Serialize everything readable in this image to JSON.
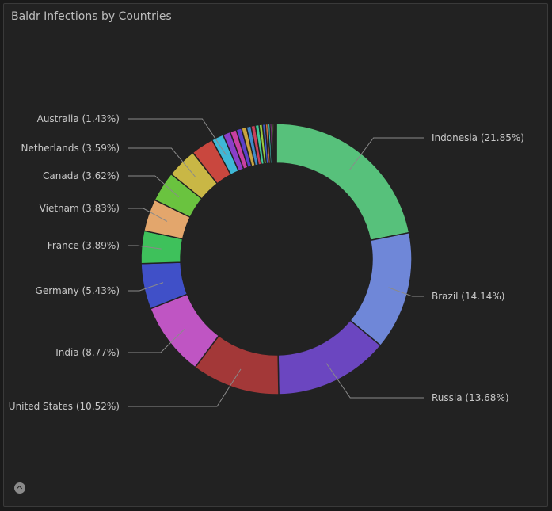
{
  "panel": {
    "title": "Baldr Infections by Countries"
  },
  "chart_data": {
    "type": "pie",
    "title": "Baldr Infections by Countries",
    "donut": true,
    "unit": "%",
    "slices": [
      {
        "name": "Indonesia",
        "value": 21.85,
        "label": "Indonesia (21.85%)",
        "color": "#57c17b",
        "labeled": true
      },
      {
        "name": "Brazil",
        "value": 14.14,
        "label": "Brazil (14.14%)",
        "color": "#6f87d8",
        "labeled": true
      },
      {
        "name": "Russia",
        "value": 13.68,
        "label": "Russia (13.68%)",
        "color": "#6b46c0",
        "labeled": true
      },
      {
        "name": "United States",
        "value": 10.52,
        "label": "United States (10.52%)",
        "color": "#a33838",
        "labeled": true
      },
      {
        "name": "India",
        "value": 8.77,
        "label": "India (8.77%)",
        "color": "#bf55c3",
        "labeled": true
      },
      {
        "name": "Germany",
        "value": 5.43,
        "label": "Germany (5.43%)",
        "color": "#4050c8",
        "labeled": true
      },
      {
        "name": "France",
        "value": 3.89,
        "label": "France (3.89%)",
        "color": "#3ec15b",
        "labeled": true
      },
      {
        "name": "Vietnam",
        "value": 3.83,
        "label": "Vietnam (3.83%)",
        "color": "#e3a66c",
        "labeled": true
      },
      {
        "name": "Canada",
        "value": 3.62,
        "label": "Canada (3.62%)",
        "color": "#6ac33f",
        "labeled": true
      },
      {
        "name": "Netherlands",
        "value": 3.59,
        "label": "Netherlands (3.59%)",
        "color": "#c9b745",
        "labeled": true
      },
      {
        "name": "",
        "value": 2.7,
        "color": "#c9473e",
        "labeled": false
      },
      {
        "name": "Australia",
        "value": 1.43,
        "label": "Australia (1.43%)",
        "color": "#3fb8d6",
        "labeled": true
      },
      {
        "name": "",
        "value": 0.9,
        "color": "#8a3fc9",
        "labeled": false
      },
      {
        "name": "",
        "value": 0.75,
        "color": "#c93fa3",
        "labeled": false
      },
      {
        "name": "",
        "value": 0.65,
        "color": "#5a3fc9",
        "labeled": false
      },
      {
        "name": "",
        "value": 0.6,
        "color": "#c9a33f",
        "labeled": false
      },
      {
        "name": "",
        "value": 0.55,
        "color": "#3f8ac9",
        "labeled": false
      },
      {
        "name": "",
        "value": 0.5,
        "color": "#c93f5a",
        "labeled": false
      },
      {
        "name": "",
        "value": 0.45,
        "color": "#3fc99a",
        "labeled": false
      },
      {
        "name": "",
        "value": 0.4,
        "color": "#9ac93f",
        "labeled": false
      },
      {
        "name": "",
        "value": 0.35,
        "color": "#3f5ac9",
        "labeled": false
      },
      {
        "name": "",
        "value": 0.3,
        "color": "#c96f3f",
        "labeled": false
      },
      {
        "name": "",
        "value": 0.25,
        "color": "#3fc9c9",
        "labeled": false
      },
      {
        "name": "",
        "value": 0.2,
        "color": "#c93fc9",
        "labeled": false
      },
      {
        "name": "",
        "value": 0.18,
        "color": "#7bc93f",
        "labeled": false
      },
      {
        "name": "",
        "value": 0.15,
        "color": "#c9c93f",
        "labeled": false
      },
      {
        "name": "",
        "value": 0.12,
        "color": "#3f7bc9",
        "labeled": false
      },
      {
        "name": "",
        "value": 0.1,
        "color": "#c93f3f",
        "labeled": false
      }
    ]
  }
}
